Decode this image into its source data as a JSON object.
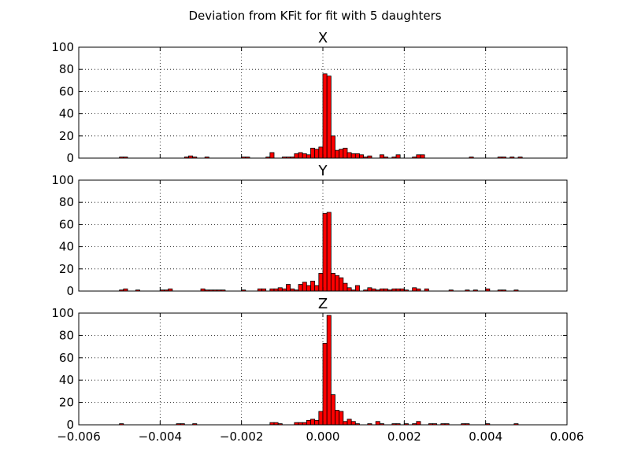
{
  "chart_data": {
    "type": "bar",
    "title": "Deviation from KFit for fit with 5 daughters",
    "bar_color": "#ff0000",
    "edge_color": "#000000",
    "grid": true,
    "bin_width": 0.0001,
    "bins_lo": -0.005,
    "xlim": [
      -0.006,
      0.006
    ],
    "xticks": [
      -0.006,
      -0.004,
      -0.002,
      0.0,
      0.002,
      0.004,
      0.006
    ],
    "xtick_labels": [
      "−0.006",
      "−0.004",
      "−0.002",
      "0.000",
      "0.002",
      "0.004",
      "0.006"
    ],
    "ylim": [
      0,
      100
    ],
    "yticks": [
      0,
      20,
      40,
      60,
      80,
      100
    ],
    "ytick_labels": [
      "0",
      "20",
      "40",
      "60",
      "80",
      "100"
    ],
    "panels": [
      {
        "title": "X",
        "bins": [
          [
            -0.005,
            1
          ],
          [
            -0.0049,
            1
          ],
          [
            -0.0034,
            1
          ],
          [
            -0.0033,
            2
          ],
          [
            -0.0032,
            1
          ],
          [
            -0.0029,
            1
          ],
          [
            -0.002,
            1
          ],
          [
            -0.0019,
            1
          ],
          [
            -0.0014,
            1
          ],
          [
            -0.0013,
            5
          ],
          [
            -0.001,
            1
          ],
          [
            -0.0009,
            1
          ],
          [
            -0.0008,
            1
          ],
          [
            -0.0007,
            4
          ],
          [
            -0.0006,
            5
          ],
          [
            -0.0005,
            4
          ],
          [
            -0.0004,
            3
          ],
          [
            -0.0003,
            9
          ],
          [
            -0.0002,
            8
          ],
          [
            -0.0001,
            10
          ],
          [
            0.0,
            76
          ],
          [
            0.0001,
            74
          ],
          [
            0.0002,
            20
          ],
          [
            0.0003,
            7
          ],
          [
            0.0004,
            8
          ],
          [
            0.0005,
            9
          ],
          [
            0.0006,
            5
          ],
          [
            0.0007,
            4
          ],
          [
            0.0008,
            4
          ],
          [
            0.0009,
            3
          ],
          [
            0.001,
            1
          ],
          [
            0.0011,
            2
          ],
          [
            0.0014,
            3
          ],
          [
            0.0015,
            1
          ],
          [
            0.0017,
            1
          ],
          [
            0.0018,
            3
          ],
          [
            0.0022,
            1
          ],
          [
            0.0023,
            3
          ],
          [
            0.0024,
            3
          ],
          [
            0.0036,
            1
          ],
          [
            0.0043,
            1
          ],
          [
            0.0044,
            1
          ],
          [
            0.0046,
            1
          ],
          [
            0.0048,
            1
          ]
        ]
      },
      {
        "title": "Y",
        "bins": [
          [
            -0.005,
            1
          ],
          [
            -0.0049,
            2
          ],
          [
            -0.0046,
            1
          ],
          [
            -0.004,
            1
          ],
          [
            -0.0039,
            1
          ],
          [
            -0.0038,
            2
          ],
          [
            -0.003,
            2
          ],
          [
            -0.0029,
            1
          ],
          [
            -0.0028,
            1
          ],
          [
            -0.0027,
            1
          ],
          [
            -0.0026,
            1
          ],
          [
            -0.0025,
            1
          ],
          [
            -0.002,
            1
          ],
          [
            -0.0016,
            2
          ],
          [
            -0.0015,
            2
          ],
          [
            -0.0013,
            2
          ],
          [
            -0.0012,
            2
          ],
          [
            -0.0011,
            3
          ],
          [
            -0.001,
            2
          ],
          [
            -0.0009,
            6
          ],
          [
            -0.0008,
            2
          ],
          [
            -0.0007,
            1
          ],
          [
            -0.0006,
            6
          ],
          [
            -0.0005,
            8
          ],
          [
            -0.0004,
            5
          ],
          [
            -0.0003,
            9
          ],
          [
            -0.0002,
            5
          ],
          [
            -0.0001,
            16
          ],
          [
            0.0,
            70
          ],
          [
            0.0001,
            71
          ],
          [
            0.0002,
            16
          ],
          [
            0.0003,
            14
          ],
          [
            0.0004,
            12
          ],
          [
            0.0005,
            7
          ],
          [
            0.0006,
            3
          ],
          [
            0.0007,
            1
          ],
          [
            0.0008,
            5
          ],
          [
            0.001,
            1
          ],
          [
            0.0011,
            3
          ],
          [
            0.0012,
            2
          ],
          [
            0.0013,
            1
          ],
          [
            0.0014,
            2
          ],
          [
            0.0015,
            2
          ],
          [
            0.0016,
            1
          ],
          [
            0.0017,
            2
          ],
          [
            0.0018,
            2
          ],
          [
            0.0019,
            2
          ],
          [
            0.002,
            1
          ],
          [
            0.0022,
            3
          ],
          [
            0.0023,
            2
          ],
          [
            0.0025,
            2
          ],
          [
            0.0031,
            1
          ],
          [
            0.0035,
            1
          ],
          [
            0.0037,
            1
          ],
          [
            0.004,
            2
          ],
          [
            0.0043,
            1
          ],
          [
            0.0044,
            1
          ],
          [
            0.0047,
            1
          ]
        ]
      },
      {
        "title": "Z",
        "bins": [
          [
            -0.005,
            1
          ],
          [
            -0.0036,
            1
          ],
          [
            -0.0035,
            1
          ],
          [
            -0.0032,
            1
          ],
          [
            -0.0013,
            2
          ],
          [
            -0.0012,
            2
          ],
          [
            -0.0011,
            1
          ],
          [
            -0.0007,
            2
          ],
          [
            -0.0006,
            2
          ],
          [
            -0.0005,
            2
          ],
          [
            -0.0004,
            4
          ],
          [
            -0.0003,
            5
          ],
          [
            -0.0002,
            4
          ],
          [
            -0.0001,
            12
          ],
          [
            0.0,
            73
          ],
          [
            0.0001,
            98
          ],
          [
            0.0002,
            27
          ],
          [
            0.0003,
            13
          ],
          [
            0.0004,
            12
          ],
          [
            0.0005,
            3
          ],
          [
            0.0006,
            5
          ],
          [
            0.0007,
            3
          ],
          [
            0.0008,
            1
          ],
          [
            0.0011,
            1
          ],
          [
            0.0013,
            3
          ],
          [
            0.0014,
            1
          ],
          [
            0.0017,
            1
          ],
          [
            0.0018,
            1
          ],
          [
            0.002,
            1
          ],
          [
            0.0022,
            1
          ],
          [
            0.0023,
            3
          ],
          [
            0.0026,
            1
          ],
          [
            0.0027,
            1
          ],
          [
            0.0029,
            1
          ],
          [
            0.003,
            1
          ],
          [
            0.0034,
            1
          ],
          [
            0.0035,
            1
          ],
          [
            0.004,
            1
          ],
          [
            0.0047,
            1
          ]
        ]
      }
    ]
  }
}
